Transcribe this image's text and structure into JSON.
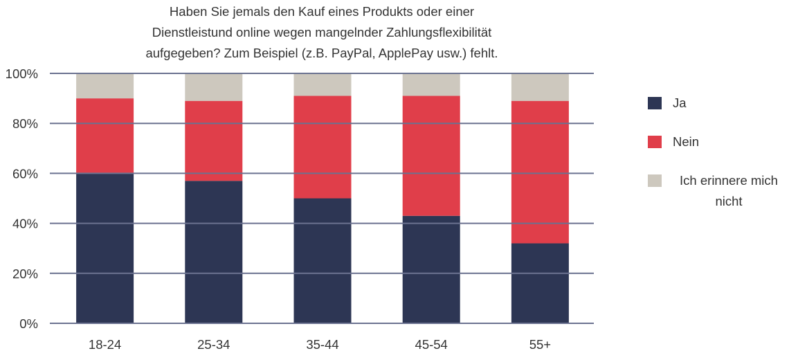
{
  "chart_data": {
    "type": "bar",
    "stacked": true,
    "title": "Haben Sie jemals den Kauf eines Produkts oder einer Dienstleistund online wegen mangelnder Zahlungsflexibilität aufgegeben? Zum Beispiel (z.B. PayPal, ApplePay usw.) fehlt.",
    "title_lines": [
      "Haben Sie jemals den Kauf eines Produkts oder einer",
      "Dienstleistund online wegen mangelnder Zahlungsflexibilität",
      "aufgegeben? Zum Beispiel (z.B. PayPal, ApplePay usw.) fehlt."
    ],
    "categories": [
      "18-24",
      "25-34",
      "35-44",
      "45-54",
      "55+"
    ],
    "series": [
      {
        "name": "Ja",
        "color": "#2d3654",
        "values": [
          60,
          57,
          50,
          43,
          32
        ]
      },
      {
        "name": "Nein",
        "color": "#e03e4a",
        "values": [
          30,
          32,
          41,
          48,
          57
        ]
      },
      {
        "name": "Ich erinnere mich nicht",
        "color": "#cdc8be",
        "values": [
          10,
          11,
          9,
          9,
          11
        ]
      }
    ],
    "yticks": [
      "0%",
      "20%",
      "40%",
      "60%",
      "80%",
      "100%"
    ],
    "ylim": [
      0,
      100
    ],
    "grid": true,
    "legend_position": "right"
  }
}
